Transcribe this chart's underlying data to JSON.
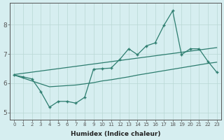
{
  "x": [
    0,
    1,
    2,
    3,
    4,
    5,
    6,
    7,
    8,
    9,
    10,
    11,
    12,
    13,
    14,
    15,
    16,
    17,
    18,
    19,
    20,
    21,
    22,
    23
  ],
  "y_main": [
    6.28,
    6.22,
    6.15,
    5.72,
    5.18,
    5.38,
    5.38,
    5.32,
    5.52,
    6.48,
    6.5,
    6.52,
    6.82,
    7.18,
    6.98,
    7.28,
    7.38,
    7.98,
    8.48,
    6.98,
    7.18,
    7.18,
    6.75,
    6.38
  ],
  "y_upper": [
    6.3,
    6.34,
    6.38,
    6.42,
    6.46,
    6.5,
    6.54,
    6.58,
    6.62,
    6.66,
    6.7,
    6.74,
    6.78,
    6.82,
    6.86,
    6.9,
    6.94,
    6.98,
    7.02,
    7.06,
    7.1,
    7.14,
    7.18,
    7.22
  ],
  "y_lower": [
    6.28,
    6.18,
    6.08,
    5.98,
    5.88,
    5.9,
    5.92,
    5.94,
    5.98,
    6.02,
    6.08,
    6.12,
    6.17,
    6.22,
    6.28,
    6.33,
    6.38,
    6.43,
    6.48,
    6.53,
    6.58,
    6.63,
    6.68,
    6.72
  ],
  "line_color": "#2d7d6f",
  "bg_color": "#d6eef0",
  "grid_color": "#b8d8d4",
  "xlabel": "Humidex (Indice chaleur)",
  "xticks": [
    0,
    1,
    2,
    3,
    4,
    5,
    6,
    7,
    8,
    9,
    10,
    11,
    12,
    13,
    14,
    15,
    16,
    17,
    18,
    19,
    20,
    21,
    22,
    23
  ],
  "yticks": [
    5,
    6,
    7,
    8
  ],
  "xlim": [
    -0.5,
    23.5
  ],
  "ylim": [
    4.75,
    8.75
  ]
}
